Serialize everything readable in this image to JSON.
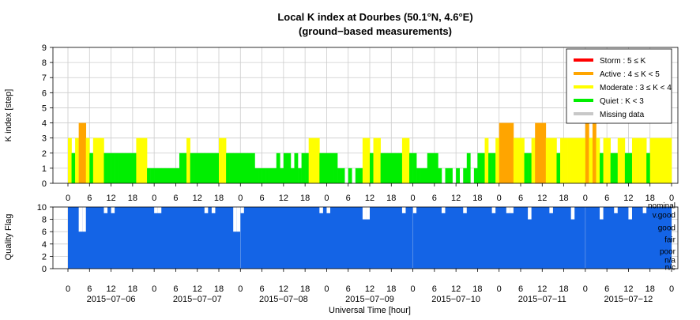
{
  "chart_data": [
    {
      "type": "bar",
      "title": "Local K index at Dourbes (50.1°N, 4.6°E)",
      "subtitle": "(ground−based measurements)",
      "ylabel": "K index [step]",
      "ylim": [
        0,
        9
      ],
      "yticks": [
        "0",
        "1",
        "2",
        "3",
        "4",
        "5",
        "6",
        "7",
        "8",
        "9"
      ],
      "xlim_hours": [
        0,
        168
      ],
      "xticks": [
        "0",
        "6",
        "12",
        "18",
        "0",
        "6",
        "12",
        "18",
        "0",
        "6",
        "12",
        "18",
        "0",
        "6",
        "12",
        "18",
        "0",
        "6",
        "12",
        "18",
        "0",
        "6",
        "12",
        "18",
        "0",
        "6",
        "12",
        "18",
        "0"
      ],
      "grid": true,
      "legend_position": "top-right",
      "legend": [
        {
          "label": "Storm : 5 ≤ K",
          "color": "#ff0000"
        },
        {
          "label": "Active : 4 ≤ K < 5",
          "color": "#ffa500"
        },
        {
          "label": "Moderate : 3 ≤ K < 4",
          "color": "#ffff00"
        },
        {
          "label": "Quiet : K < 3",
          "color": "#00ee00"
        },
        {
          "label": "Missing data",
          "color": "#c8c8c8"
        }
      ],
      "bar_width_hours": 1,
      "series_x_hours": [
        0,
        1,
        2,
        3,
        4,
        5,
        6,
        7,
        8,
        9,
        10,
        11,
        12,
        13,
        14,
        15,
        16,
        17,
        18,
        19,
        20,
        21,
        22,
        23,
        24,
        25,
        26,
        27,
        28,
        29,
        30,
        31,
        32,
        33,
        34,
        35,
        36,
        37,
        38,
        39,
        40,
        41,
        42,
        43,
        44,
        45,
        46,
        47,
        48,
        49,
        50,
        51,
        52,
        53,
        54,
        55,
        56,
        57,
        58,
        59,
        60,
        61,
        62,
        63,
        64,
        65,
        66,
        67,
        68,
        69,
        70,
        71,
        72,
        73,
        74,
        75,
        76,
        77,
        78,
        79,
        80,
        81,
        82,
        83,
        84,
        85,
        86,
        87,
        88,
        89,
        90,
        91,
        92,
        93,
        94,
        95,
        96,
        97,
        98,
        99,
        100,
        101,
        102,
        103,
        104,
        105,
        106,
        107,
        108,
        109,
        110,
        111,
        112,
        113,
        114,
        115,
        116,
        117,
        118,
        119,
        120,
        121,
        122,
        123,
        124,
        125,
        126,
        127,
        128,
        129,
        130,
        131,
        132,
        133,
        134,
        135,
        136,
        137,
        138,
        139,
        140,
        141,
        142,
        143,
        144,
        145,
        146,
        147,
        148,
        149,
        150,
        151,
        152,
        153,
        154,
        155,
        156,
        157,
        158,
        159,
        160,
        161,
        162,
        163,
        164,
        165,
        166,
        167
      ],
      "k_values": [
        3,
        2,
        3,
        4,
        4,
        3,
        2,
        3,
        3,
        3,
        2,
        2,
        2,
        2,
        2,
        2,
        2,
        2,
        2,
        3,
        3,
        3,
        1,
        1,
        1,
        1,
        1,
        1,
        1,
        1,
        1,
        2,
        2,
        3,
        2,
        2,
        2,
        2,
        2,
        2,
        2,
        2,
        3,
        3,
        2,
        2,
        2,
        2,
        2,
        2,
        2,
        2,
        1,
        1,
        1,
        1,
        1,
        1,
        2,
        1,
        2,
        2,
        1,
        2,
        1,
        2,
        2,
        3,
        3,
        3,
        2,
        2,
        2,
        2,
        2,
        1,
        1,
        0,
        1,
        0,
        1,
        1,
        3,
        3,
        2,
        3,
        3,
        2,
        2,
        2,
        2,
        2,
        2,
        3,
        3,
        2,
        2,
        1,
        1,
        1,
        2,
        2,
        2,
        1,
        0,
        1,
        1,
        0,
        1,
        0,
        1,
        2,
        0,
        1,
        2,
        2,
        3,
        2,
        2,
        3,
        4,
        4,
        4,
        4,
        3,
        3,
        3,
        2,
        2,
        3,
        4,
        4,
        4,
        3,
        3,
        3,
        2,
        3,
        3,
        3,
        3,
        3,
        3,
        3,
        4,
        3,
        4,
        3,
        2,
        3,
        3,
        2,
        2,
        3,
        3,
        2,
        2,
        3,
        3,
        3,
        3,
        2,
        3,
        3,
        3,
        3,
        3,
        3
      ],
      "series": [
        {
          "name": "K index",
          "values": "k_values"
        }
      ]
    },
    {
      "type": "area",
      "ylabel": "Quality Flag",
      "ylim": [
        0,
        10
      ],
      "yticks": [
        "0",
        "2",
        "4",
        "6",
        "8",
        "10"
      ],
      "xlabel": "Universal Time [hour]",
      "xticks": [
        "0",
        "6",
        "12",
        "18",
        "0",
        "6",
        "12",
        "18",
        "0",
        "6",
        "12",
        "18",
        "0",
        "6",
        "12",
        "18",
        "0",
        "6",
        "12",
        "18",
        "0",
        "6",
        "12",
        "18",
        "0",
        "6",
        "12",
        "18",
        "0"
      ],
      "date_labels": [
        "2015−07−06",
        "2015−07−07",
        "2015−07−08",
        "2015−07−09",
        "2015−07−10",
        "2015−07−11",
        "2015−07−12"
      ],
      "level_labels": [
        "nominal",
        "v.good",
        "good",
        "fair",
        "poor",
        "n/a",
        "n/c"
      ],
      "fill_color": "#1464e6",
      "grid": true
    }
  ]
}
